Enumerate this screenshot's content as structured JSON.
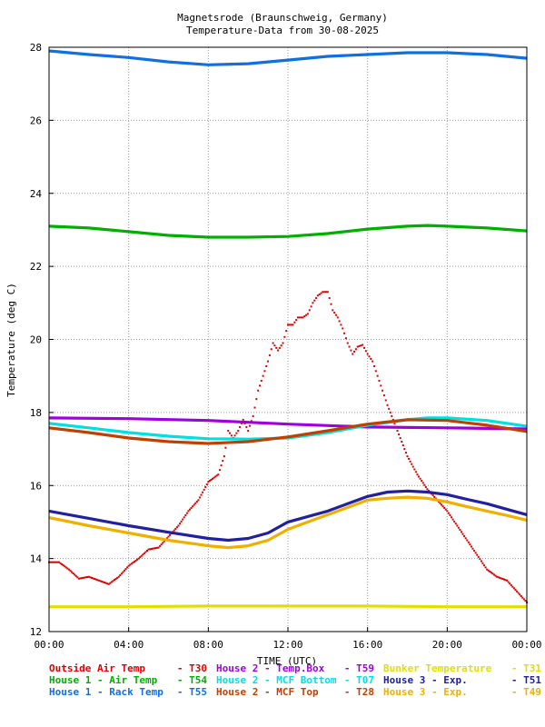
{
  "chart_data": {
    "type": "line",
    "title": [
      "Magnetsrode (Braunschweig, Germany)",
      "Temperature-Data from 30-08-2025"
    ],
    "xlabel": "TIME (UTC)",
    "ylabel": "Temperature (deg C)",
    "ylim": [
      12,
      28
    ],
    "xlim": [
      0,
      24
    ],
    "grid": true,
    "x_tick_values": [
      0,
      4,
      8,
      12,
      16,
      20,
      24
    ],
    "x_ticks": [
      "00:00",
      "04:00",
      "08:00",
      "12:00",
      "16:00",
      "20:00",
      "00:00"
    ],
    "y_ticks": [
      "12",
      "14",
      "16",
      "18",
      "20",
      "22",
      "24",
      "26",
      "28"
    ],
    "legend_placement": "bottom",
    "series": [
      {
        "name": "Outside Air Temp",
        "id": "T30",
        "color": "#e00000",
        "style": "dots",
        "x": [
          0,
          0.5,
          1,
          1.5,
          2,
          2.5,
          3,
          3.5,
          4,
          4.5,
          5,
          5.5,
          6,
          6.5,
          7,
          7.5,
          8,
          8.5,
          8.8,
          9,
          9.25,
          9.5,
          9.75,
          10,
          10.25,
          10.5,
          10.75,
          11,
          11.25,
          11.5,
          11.75,
          12,
          12.25,
          12.5,
          12.75,
          13,
          13.25,
          13.5,
          13.75,
          14,
          14.25,
          14.5,
          14.75,
          15,
          15.25,
          15.5,
          15.75,
          16,
          16.25,
          16.5,
          16.75,
          17,
          17.5,
          18,
          18.5,
          19,
          19.5,
          20,
          20.5,
          21,
          21.5,
          22,
          22.5,
          23,
          23.5,
          24
        ],
        "y": [
          13.9,
          13.9,
          13.7,
          13.45,
          13.5,
          13.4,
          13.3,
          13.5,
          13.8,
          14.0,
          14.25,
          14.3,
          14.6,
          14.9,
          15.3,
          15.6,
          16.1,
          16.3,
          16.8,
          17.5,
          17.3,
          17.5,
          17.8,
          17.5,
          17.9,
          18.6,
          19.0,
          19.4,
          19.9,
          19.7,
          19.9,
          20.4,
          20.4,
          20.6,
          20.6,
          20.7,
          21.0,
          21.2,
          21.3,
          21.3,
          20.8,
          20.6,
          20.3,
          19.9,
          19.6,
          19.8,
          19.85,
          19.6,
          19.4,
          19.0,
          18.6,
          18.2,
          17.5,
          16.8,
          16.3,
          15.9,
          15.6,
          15.3,
          14.9,
          14.5,
          14.1,
          13.7,
          13.5,
          13.4,
          13.1,
          12.8
        ]
      },
      {
        "name": "House 1 - Air  Temp",
        "id": "T54",
        "color": "#00b000",
        "style": "line",
        "x": [
          0,
          2,
          4,
          6,
          8,
          10,
          12,
          14,
          16,
          18,
          19,
          20,
          22,
          24
        ],
        "y": [
          23.1,
          23.05,
          22.95,
          22.85,
          22.8,
          22.8,
          22.82,
          22.9,
          23.02,
          23.1,
          23.12,
          23.1,
          23.05,
          22.97
        ]
      },
      {
        "name": "House 1 - Rack Temp",
        "id": "T55",
        "color": "#1070e0",
        "style": "line",
        "x": [
          0,
          2,
          4,
          6,
          8,
          10,
          12,
          14,
          16,
          18,
          20,
          22,
          24
        ],
        "y": [
          27.9,
          27.8,
          27.72,
          27.6,
          27.52,
          27.55,
          27.65,
          27.75,
          27.8,
          27.85,
          27.85,
          27.8,
          27.7
        ]
      },
      {
        "name": "House 2 - Temp.Box",
        "id": "T59",
        "color": "#a000e0",
        "style": "line",
        "x": [
          0,
          4,
          8,
          12,
          16,
          20,
          24
        ],
        "y": [
          17.85,
          17.83,
          17.78,
          17.68,
          17.6,
          17.58,
          17.55
        ]
      },
      {
        "name": "House 2 - MCF Bottom",
        "id": "T07",
        "color": "#00e0e0",
        "style": "line",
        "x": [
          0,
          2,
          4,
          6,
          8,
          10,
          12,
          14,
          16,
          18,
          19,
          20,
          22,
          24
        ],
        "y": [
          17.7,
          17.58,
          17.45,
          17.35,
          17.28,
          17.27,
          17.3,
          17.45,
          17.65,
          17.8,
          17.85,
          17.85,
          17.78,
          17.62
        ]
      },
      {
        "name": "House 2 - MCF Top",
        "id": "T28",
        "color": "#c04000",
        "style": "line",
        "x": [
          0,
          2,
          4,
          6,
          8,
          10,
          12,
          14,
          16,
          18,
          20,
          22,
          24
        ],
        "y": [
          17.58,
          17.45,
          17.3,
          17.2,
          17.15,
          17.2,
          17.33,
          17.5,
          17.68,
          17.8,
          17.78,
          17.65,
          17.48
        ]
      },
      {
        "name": "Bunker Temperature",
        "id": "T31",
        "color": "#e0e000",
        "style": "line",
        "x": [
          0,
          4,
          8,
          12,
          16,
          20,
          24
        ],
        "y": [
          12.68,
          12.68,
          12.7,
          12.7,
          12.7,
          12.68,
          12.68
        ]
      },
      {
        "name": "House 3 - Exp.",
        "id": "T51",
        "color": "#2020a0",
        "style": "line",
        "x": [
          0,
          2,
          4,
          6,
          8,
          9,
          10,
          11,
          12,
          13,
          14,
          15,
          16,
          17,
          18,
          19,
          20,
          21,
          22,
          23,
          24
        ],
        "y": [
          15.3,
          15.1,
          14.9,
          14.72,
          14.55,
          14.5,
          14.55,
          14.7,
          15.0,
          15.15,
          15.3,
          15.5,
          15.7,
          15.82,
          15.85,
          15.82,
          15.75,
          15.62,
          15.5,
          15.35,
          15.2
        ]
      },
      {
        "name": "House 3 - Exp.",
        "id": "T49",
        "color": "#f0b000",
        "style": "line",
        "x": [
          0,
          2,
          4,
          6,
          8,
          9,
          10,
          11,
          12,
          13,
          14,
          15,
          16,
          17,
          18,
          19,
          20,
          21,
          22,
          23,
          24
        ],
        "y": [
          15.12,
          14.9,
          14.7,
          14.5,
          14.35,
          14.3,
          14.35,
          14.5,
          14.8,
          15.0,
          15.2,
          15.4,
          15.6,
          15.65,
          15.68,
          15.65,
          15.55,
          15.42,
          15.3,
          15.18,
          15.05
        ]
      }
    ]
  }
}
